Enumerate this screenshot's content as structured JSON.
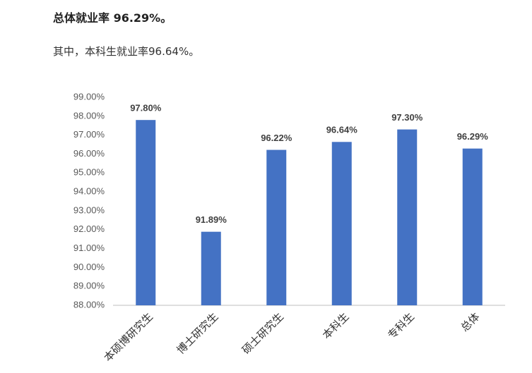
{
  "heading": "总体就业率 96.29%。",
  "paragraph": "其中，本科生就业率96.64%。",
  "chart_data": {
    "type": "bar",
    "categories": [
      "本硕博研究生",
      "博士研究生",
      "硕士研究生",
      "本科生",
      "专科生",
      "总体"
    ],
    "values": [
      97.8,
      91.89,
      96.22,
      96.64,
      97.3,
      96.29
    ],
    "value_labels": [
      "97.80%",
      "91.89%",
      "96.22%",
      "96.64%",
      "97.30%",
      "96.29%"
    ],
    "color": "#4472c4",
    "ylim": [
      88,
      99
    ],
    "yticks": [
      {
        "value": 88,
        "label": "88.00%"
      },
      {
        "value": 89,
        "label": "89.00%"
      },
      {
        "value": 90,
        "label": "90.00%"
      },
      {
        "value": 91,
        "label": "91.00%"
      },
      {
        "value": 92,
        "label": "92.00%"
      },
      {
        "value": 93,
        "label": "93.00%"
      },
      {
        "value": 94,
        "label": "94.00%"
      },
      {
        "value": 95,
        "label": "95.00%"
      },
      {
        "value": 96,
        "label": "96.00%"
      },
      {
        "value": 97,
        "label": "97.00%"
      },
      {
        "value": 98,
        "label": "98.00%"
      },
      {
        "value": 99,
        "label": "99.00%"
      }
    ],
    "grid": false
  }
}
